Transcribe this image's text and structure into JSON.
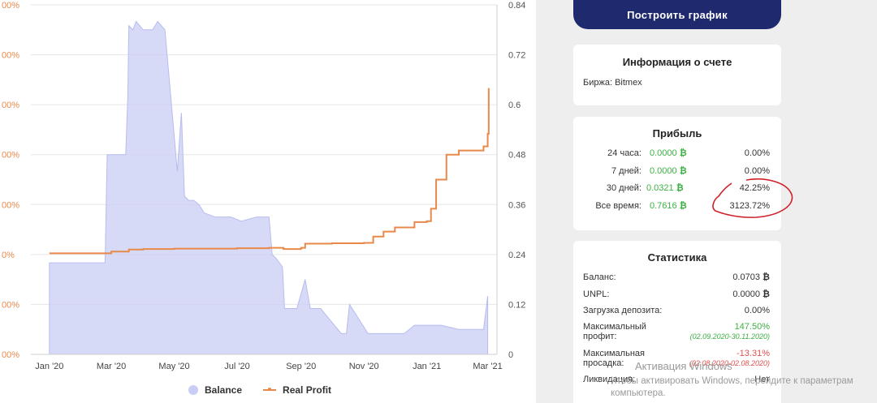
{
  "chart_data": {
    "type": "area",
    "x_ticks": [
      "Jan '20",
      "Mar '20",
      "May '20",
      "Jul '20",
      "Sep '20",
      "Nov '20",
      "Jan '21",
      "Mar '21"
    ],
    "y_left_ticks": [
      "00%",
      "00%",
      "00%",
      "00%",
      "00%",
      "0%",
      "00%",
      "00%"
    ],
    "y_right_ticks": [
      "0.84",
      "0.72",
      "0.6",
      "0.48",
      "0.36",
      "0.24",
      "0.12",
      "0"
    ],
    "y_right_range": [
      0,
      0.84
    ],
    "series": [
      {
        "name": "Balance",
        "type": "area",
        "color": "#c9cdf4",
        "x": [
          "2020-01-01",
          "2020-02-01",
          "2020-02-24",
          "2020-02-26",
          "2020-03-01",
          "2020-03-10",
          "2020-03-15",
          "2020-03-17",
          "2020-03-18",
          "2020-03-22",
          "2020-03-25",
          "2020-04-01",
          "2020-04-10",
          "2020-04-15",
          "2020-04-22",
          "2020-05-04",
          "2020-05-08",
          "2020-05-11",
          "2020-05-15",
          "2020-05-20",
          "2020-05-25",
          "2020-05-30",
          "2020-06-10",
          "2020-06-20",
          "2020-06-25",
          "2020-07-05",
          "2020-07-20",
          "2020-08-01",
          "2020-08-04",
          "2020-08-08",
          "2020-08-14",
          "2020-08-16",
          "2020-08-20",
          "2020-08-28",
          "2020-09-05",
          "2020-09-10",
          "2020-09-20",
          "2020-10-10",
          "2020-10-15",
          "2020-10-18",
          "2020-11-05",
          "2020-11-15",
          "2020-12-01",
          "2020-12-10",
          "2020-12-20",
          "2021-01-01",
          "2021-01-15",
          "2021-02-01",
          "2021-02-15",
          "2021-02-25",
          "2021-03-01"
        ],
        "values": [
          0.22,
          0.22,
          0.22,
          0.48,
          0.48,
          0.48,
          0.48,
          0.62,
          0.79,
          0.78,
          0.8,
          0.78,
          0.78,
          0.8,
          0.78,
          0.44,
          0.58,
          0.38,
          0.37,
          0.37,
          0.36,
          0.34,
          0.33,
          0.33,
          0.33,
          0.32,
          0.33,
          0.33,
          0.24,
          0.23,
          0.21,
          0.11,
          0.11,
          0.11,
          0.18,
          0.11,
          0.11,
          0.05,
          0.05,
          0.12,
          0.05,
          0.05,
          0.05,
          0.05,
          0.07,
          0.07,
          0.07,
          0.06,
          0.06,
          0.06,
          0.14
        ]
      },
      {
        "name": "Real Profit",
        "type": "line",
        "color": "#e8894a",
        "x": [
          "2020-01-01",
          "2020-02-15",
          "2020-03-01",
          "2020-03-15",
          "2020-03-18",
          "2020-04-01",
          "2020-05-01",
          "2020-06-01",
          "2020-07-01",
          "2020-08-01",
          "2020-08-15",
          "2020-09-01",
          "2020-09-05",
          "2020-10-01",
          "2020-11-01",
          "2020-11-10",
          "2020-11-20",
          "2020-12-01",
          "2020-12-20",
          "2021-01-01",
          "2021-01-05",
          "2021-01-10",
          "2021-01-20",
          "2021-02-01",
          "2021-02-15",
          "2021-02-25",
          "2021-03-01",
          "2021-03-02"
        ],
        "values": [
          0.243,
          0.243,
          0.247,
          0.247,
          0.252,
          0.253,
          0.254,
          0.254,
          0.255,
          0.256,
          0.253,
          0.256,
          0.266,
          0.267,
          0.268,
          0.283,
          0.295,
          0.305,
          0.318,
          0.32,
          0.35,
          0.42,
          0.48,
          0.49,
          0.49,
          0.5,
          0.53,
          0.64
        ]
      }
    ],
    "legend": [
      "Balance",
      "Real Profit"
    ],
    "legend_position": "bottom"
  },
  "sidebar": {
    "build_button": "Построить график",
    "info": {
      "title": "Информация о счете",
      "exchange": "Биржа: Bitmex"
    },
    "profit": {
      "title": "Прибыль",
      "rows": [
        {
          "label": "24 часа:",
          "value": "0.0000",
          "pct": "0.00%"
        },
        {
          "label": "7 дней:",
          "value": "0.0000",
          "pct": "0.00%"
        },
        {
          "label": "30 дней:",
          "value": "0.0321",
          "pct": "42.25%"
        },
        {
          "label": "Все время:",
          "value": "0.7616",
          "pct": "3123.72%"
        }
      ]
    },
    "stats": {
      "title": "Статистика",
      "balance_label": "Баланс:",
      "balance_value": "0.0703",
      "unpl_label": "UNPL:",
      "unpl_value": "0.0000",
      "deposit_label": "Загрузка депозита:",
      "deposit_value": "0.00%",
      "max_profit_label_1": "Максимальный",
      "max_profit_label_2": "профит:",
      "max_profit_value": "147.50%",
      "max_profit_dates": "(02.09.2020-30.11.2020)",
      "max_drawdown_label_1": "Максимальная",
      "max_drawdown_label_2": "просадка:",
      "max_drawdown_value": "-13.31%",
      "max_drawdown_dates": "(02.08.2020-02.08.2020)",
      "liquidation_label": "Ликвидация:",
      "liquidation_value": "Нет"
    },
    "btc_symbol": "₿",
    "accent_color": "#1f2a6e",
    "profit_color": "#3cb043",
    "loss_color": "#e05050"
  },
  "watermark": {
    "title": "Активация Windows",
    "subtitle": "Чтобы активировать Windows, перейдите к параметрам компьютера."
  }
}
